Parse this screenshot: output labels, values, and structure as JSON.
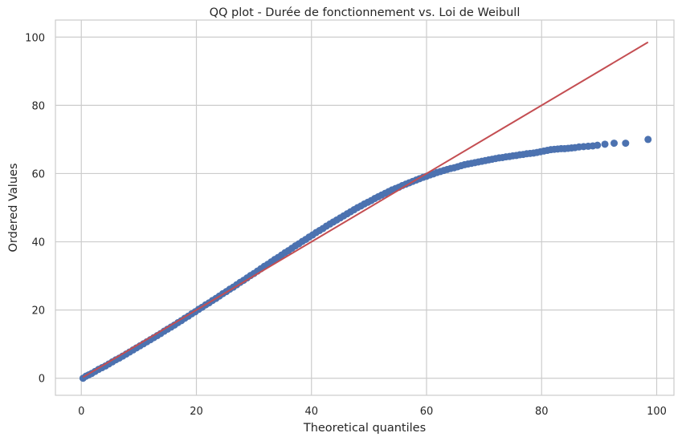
{
  "chart_data": {
    "type": "scatter",
    "title": "QQ plot - Durée de fonctionnement vs. Loi de Weibull",
    "xlabel": "Theoretical quantiles",
    "ylabel": "Ordered Values",
    "xlim": [
      -4.5,
      103
    ],
    "ylim": [
      -5,
      105
    ],
    "xticks": [
      0,
      20,
      40,
      60,
      80,
      100
    ],
    "yticks": [
      0,
      20,
      40,
      60,
      80,
      100
    ],
    "grid": true,
    "colors": {
      "points": "#4c72b0",
      "fit_line": "#c44e52",
      "grid": "#cccccc",
      "frame": "#cccccc"
    },
    "fit_line": {
      "x": [
        0.3,
        98.5
      ],
      "y": [
        0.3,
        98.5
      ]
    },
    "series": [
      {
        "x": [
          0.3,
          0.8,
          1.3,
          1.8,
          2.4,
          3.0,
          3.6,
          4.2,
          4.8,
          5.4,
          6.0,
          6.6,
          7.2,
          7.8,
          8.4,
          9.0,
          9.6,
          10.2,
          10.8,
          11.4,
          12.0,
          12.6,
          13.2,
          13.8,
          14.4,
          15.0,
          15.6,
          16.2,
          16.8,
          17.4,
          18.0,
          18.6,
          19.2,
          19.8,
          20.4,
          21.0,
          21.6,
          22.2,
          22.8,
          23.4,
          24.0,
          24.6,
          25.2,
          25.8,
          26.4,
          27.0,
          27.6,
          28.2,
          28.8,
          29.4,
          30.0,
          30.6,
          31.2,
          31.8,
          32.4,
          33.0,
          33.6,
          34.2,
          34.8,
          35.4,
          36.0,
          36.6,
          37.2,
          37.8,
          38.4,
          39.0,
          39.6,
          40.2,
          40.8,
          41.4,
          42.0,
          42.6,
          43.2,
          43.8,
          44.4,
          45.0,
          45.6,
          46.2,
          46.8,
          47.4,
          48.0,
          48.6,
          49.2,
          49.8,
          50.4,
          51.0,
          51.6,
          52.2,
          52.8,
          53.4,
          54.0,
          54.6,
          55.2,
          55.8,
          56.4,
          57.0,
          57.6,
          58.2,
          58.8,
          59.4,
          60.0,
          60.6,
          61.2,
          61.8,
          62.4,
          63.0,
          63.6,
          64.2,
          64.8,
          65.4,
          66.0,
          66.6,
          67.2,
          67.8,
          68.4,
          69.0,
          69.6,
          70.2,
          70.8,
          71.4,
          72.0,
          72.6,
          73.2,
          73.8,
          74.4,
          75.0,
          75.6,
          76.2,
          76.8,
          77.4,
          78.0,
          78.6,
          79.2,
          79.8,
          80.4,
          81.0,
          81.6,
          82.2,
          82.8,
          83.4,
          84.0,
          84.6,
          85.2,
          85.8,
          86.5,
          87.3,
          88.1,
          88.9,
          89.7,
          91.0,
          92.6,
          94.6,
          98.5
        ],
        "y": [
          0.0,
          0.6,
          1.0,
          1.4,
          2.0,
          2.6,
          3.1,
          3.6,
          4.2,
          4.8,
          5.4,
          5.9,
          6.5,
          7.1,
          7.7,
          8.3,
          8.9,
          9.5,
          10.1,
          10.7,
          11.3,
          11.9,
          12.5,
          13.1,
          13.8,
          14.4,
          15.0,
          15.6,
          16.3,
          16.9,
          17.6,
          18.2,
          18.9,
          19.5,
          20.2,
          20.8,
          21.5,
          22.1,
          22.8,
          23.4,
          24.1,
          24.8,
          25.4,
          26.1,
          26.7,
          27.4,
          28.1,
          28.7,
          29.4,
          30.1,
          30.7,
          31.4,
          32.1,
          32.8,
          33.4,
          34.1,
          34.8,
          35.4,
          36.1,
          36.8,
          37.4,
          38.1,
          38.8,
          39.4,
          40.1,
          40.7,
          41.4,
          42.0,
          42.7,
          43.3,
          43.9,
          44.6,
          45.2,
          45.8,
          46.4,
          47.0,
          47.6,
          48.2,
          48.8,
          49.4,
          50.0,
          50.5,
          51.1,
          51.6,
          52.1,
          52.7,
          53.2,
          53.7,
          54.2,
          54.7,
          55.2,
          55.6,
          56.0,
          56.5,
          56.9,
          57.3,
          57.7,
          58.1,
          58.5,
          58.9,
          59.2,
          59.6,
          59.9,
          60.3,
          60.6,
          60.9,
          61.2,
          61.5,
          61.7,
          62.0,
          62.3,
          62.6,
          62.8,
          63.0,
          63.2,
          63.4,
          63.6,
          63.8,
          64.0,
          64.2,
          64.4,
          64.6,
          64.7,
          64.9,
          65.0,
          65.2,
          65.3,
          65.5,
          65.6,
          65.8,
          65.9,
          66.0,
          66.2,
          66.4,
          66.6,
          66.8,
          67.0,
          67.1,
          67.2,
          67.3,
          67.3,
          67.4,
          67.5,
          67.6,
          67.8,
          67.9,
          68.0,
          68.1,
          68.3,
          68.6,
          68.9,
          68.9,
          70.0
        ]
      }
    ]
  }
}
